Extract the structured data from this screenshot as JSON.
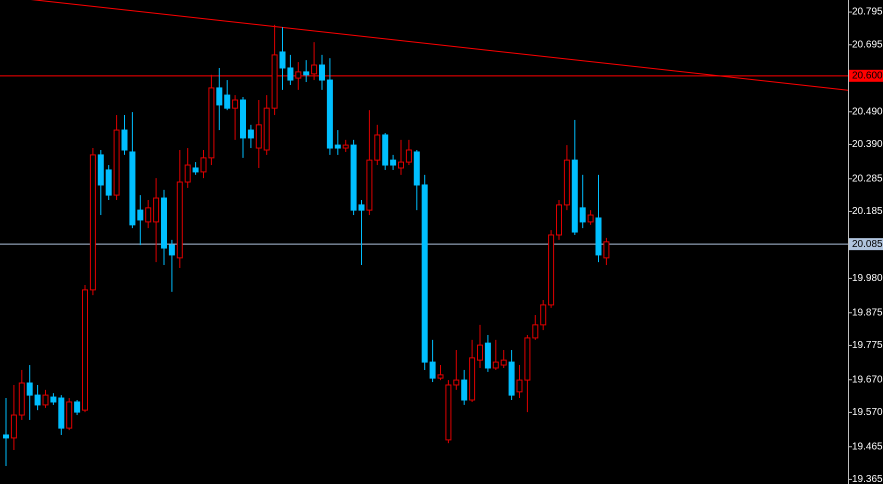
{
  "chart_data": {
    "type": "candlestick",
    "open": [
      19.501,
      19.492,
      19.562,
      19.66,
      19.623,
      19.593,
      19.617,
      19.614,
      19.522,
      19.602,
      19.577,
      19.945,
      20.358,
      20.312,
      20.235,
      20.434,
      20.367,
      20.189,
      20.153,
      20.153,
      20.226,
      20.082,
      20.043,
      20.275,
      20.318,
      20.306,
      20.349,
      20.563,
      20.541,
      20.501,
      20.526,
      20.434,
      20.379,
      20.373,
      20.501,
      20.673,
      20.624,
      20.593,
      20.612,
      20.606,
      20.633,
      20.587,
      20.388,
      20.379,
      20.388,
      20.205,
      20.189,
      20.342,
      20.419,
      20.342,
      20.318,
      20.336,
      20.367,
      20.266,
      19.724,
      19.675,
      19.486,
      19.654,
      19.669,
      19.608,
      19.73,
      19.782,
      19.706,
      19.715,
      19.724,
      19.633,
      19.669,
      19.798,
      19.838,
      19.899,
      20.113,
      20.205,
      20.342,
      20.196,
      20.153,
      20.165,
      20.043
    ],
    "high": [
      19.614,
      19.654,
      19.7,
      19.715,
      19.654,
      19.639,
      19.629,
      19.623,
      19.614,
      19.608,
      19.96,
      20.379,
      20.373,
      20.327,
      20.48,
      20.48,
      20.489,
      20.235,
      20.22,
      20.287,
      20.251,
      20.098,
      20.373,
      20.379,
      20.336,
      20.373,
      20.603,
      20.624,
      20.587,
      20.541,
      20.535,
      20.45,
      20.526,
      20.541,
      20.756,
      20.749,
      20.664,
      20.642,
      20.648,
      20.703,
      20.664,
      20.654,
      20.434,
      20.404,
      20.404,
      20.22,
      20.495,
      20.45,
      20.425,
      20.358,
      20.404,
      20.404,
      20.373,
      20.297,
      19.792,
      19.715,
      19.669,
      19.761,
      19.7,
      19.792,
      19.838,
      19.807,
      19.792,
      19.761,
      19.761,
      19.715,
      19.807,
      19.868,
      19.914,
      20.128,
      20.22,
      20.388,
      20.465,
      20.297,
      20.189,
      20.297,
      20.104
    ],
    "low": [
      19.406,
      19.455,
      19.547,
      19.547,
      19.577,
      19.584,
      19.593,
      19.501,
      19.516,
      19.562,
      19.571,
      19.929,
      20.174,
      20.22,
      20.22,
      20.358,
      20.134,
      20.082,
      20.134,
      20.03,
      20.021,
      19.939,
      20.012,
      20.257,
      20.297,
      20.287,
      20.327,
      20.434,
      20.495,
      20.404,
      20.349,
      20.379,
      20.318,
      20.358,
      20.48,
      20.557,
      20.572,
      20.557,
      20.581,
      20.587,
      20.557,
      20.358,
      20.358,
      20.367,
      20.174,
      20.021,
      20.174,
      20.327,
      20.312,
      20.312,
      20.297,
      20.327,
      20.189,
      19.7,
      19.663,
      19.669,
      19.476,
      19.639,
      19.593,
      19.602,
      19.706,
      19.694,
      19.7,
      19.706,
      19.608,
      19.614,
      19.571,
      19.792,
      19.822,
      19.89,
      20.098,
      20.189,
      20.113,
      20.134,
      20.144,
      20.03,
      20.021
    ],
    "close": [
      19.492,
      19.562,
      19.66,
      19.623,
      19.593,
      19.623,
      19.602,
      19.522,
      19.602,
      19.571,
      19.945,
      20.358,
      20.266,
      20.235,
      20.434,
      20.373,
      20.144,
      20.159,
      20.196,
      20.226,
      20.073,
      20.052,
      20.275,
      20.327,
      20.306,
      20.349,
      20.563,
      20.511,
      20.501,
      20.526,
      20.41,
      20.41,
      20.45,
      20.501,
      20.664,
      20.624,
      20.587,
      20.612,
      20.603,
      20.633,
      20.587,
      20.379,
      20.379,
      20.388,
      20.189,
      20.189,
      20.342,
      20.419,
      20.327,
      20.327,
      20.336,
      20.373,
      20.266,
      19.724,
      19.675,
      19.685,
      19.654,
      19.669,
      19.608,
      19.737,
      19.776,
      19.706,
      19.724,
      19.73,
      19.623,
      19.669,
      19.798,
      19.838,
      19.899,
      20.113,
      20.205,
      20.342,
      20.122,
      20.153,
      20.174,
      20.052,
      20.092
    ],
    "up_color": "#e00000",
    "down_color": "#00bfff",
    "ylim": [
      19.351,
      20.832
    ],
    "yticks": [
      20.795,
      20.695,
      {
        "value": 20.6,
        "label": "20.600"
      },
      {
        "value": 20.49,
        "label": "20.490"
      },
      {
        "value": 20.39,
        "label": "20.390"
      },
      20.285,
      20.185,
      20.085,
      {
        "value": 19.98,
        "label": "19.980"
      },
      19.875,
      19.775,
      {
        "value": 19.67,
        "label": "19.670"
      },
      {
        "value": 19.57,
        "label": "19.570"
      },
      19.465,
      19.365
    ],
    "hlines": [
      {
        "value": 20.6,
        "color": "#ff0000"
      },
      {
        "value": 20.085,
        "color": "#b0c4de"
      }
    ],
    "trendline": {
      "values": [
        20.844,
        20.556
      ],
      "color": "#ff0000"
    }
  }
}
